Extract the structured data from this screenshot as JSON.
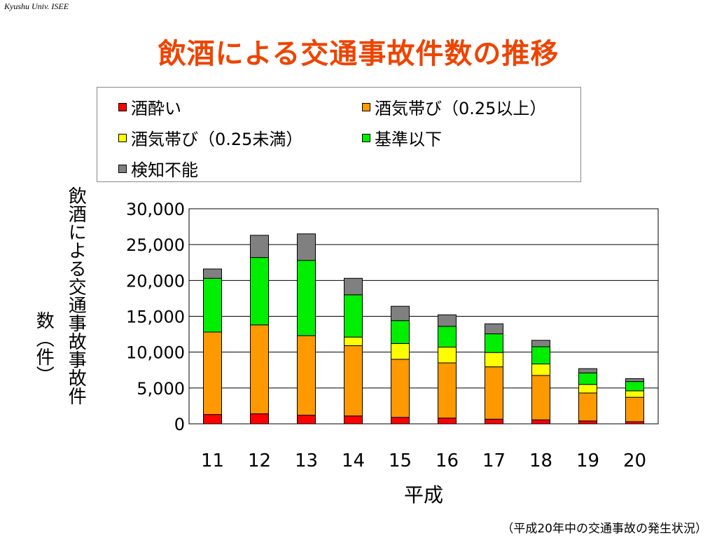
{
  "header_note": "Kyushu Univ. ISEE",
  "slide_title": "飲酒による交通事故件数の推移",
  "caption": "（平成20年中の交通事故の発生状況）",
  "chart_data": {
    "type": "bar",
    "stacked": true,
    "xlabel": "平成",
    "ylabel_lines": [
      "飲酒による交通事故事故件",
      "数（件）"
    ],
    "ylim": [
      0,
      30000
    ],
    "yticks": [
      "0",
      "5,000",
      "10,000",
      "15,000",
      "20,000",
      "25,000",
      "30,000"
    ],
    "ytick_values": [
      0,
      5000,
      10000,
      15000,
      20000,
      25000,
      30000
    ],
    "grid": true,
    "legend_position": "top",
    "categories": [
      "11",
      "12",
      "13",
      "14",
      "15",
      "16",
      "17",
      "18",
      "19",
      "20"
    ],
    "series": [
      {
        "name": "酒酔い",
        "color": "#ff0000",
        "values": [
          1300,
          1400,
          1200,
          1100,
          900,
          800,
          650,
          550,
          400,
          300
        ]
      },
      {
        "name": "酒気帯び（0.25以上）",
        "color": "#ff9900",
        "values": [
          11500,
          12400,
          11100,
          9800,
          8100,
          7700,
          7300,
          6200,
          3900,
          3400
        ]
      },
      {
        "name": "酒気帯び（0.25未満）",
        "color": "#ffff00",
        "values": [
          0,
          0,
          0,
          1200,
          2200,
          2200,
          2000,
          1600,
          1200,
          900
        ]
      },
      {
        "name": "基準以下",
        "color": "#00ee00",
        "values": [
          7500,
          9400,
          10500,
          5900,
          3200,
          2900,
          2600,
          2400,
          1600,
          1300
        ]
      },
      {
        "name": "検知不能",
        "color": "#808080",
        "values": [
          1300,
          3100,
          3700,
          2300,
          2000,
          1600,
          1400,
          900,
          600,
          400
        ]
      }
    ]
  }
}
